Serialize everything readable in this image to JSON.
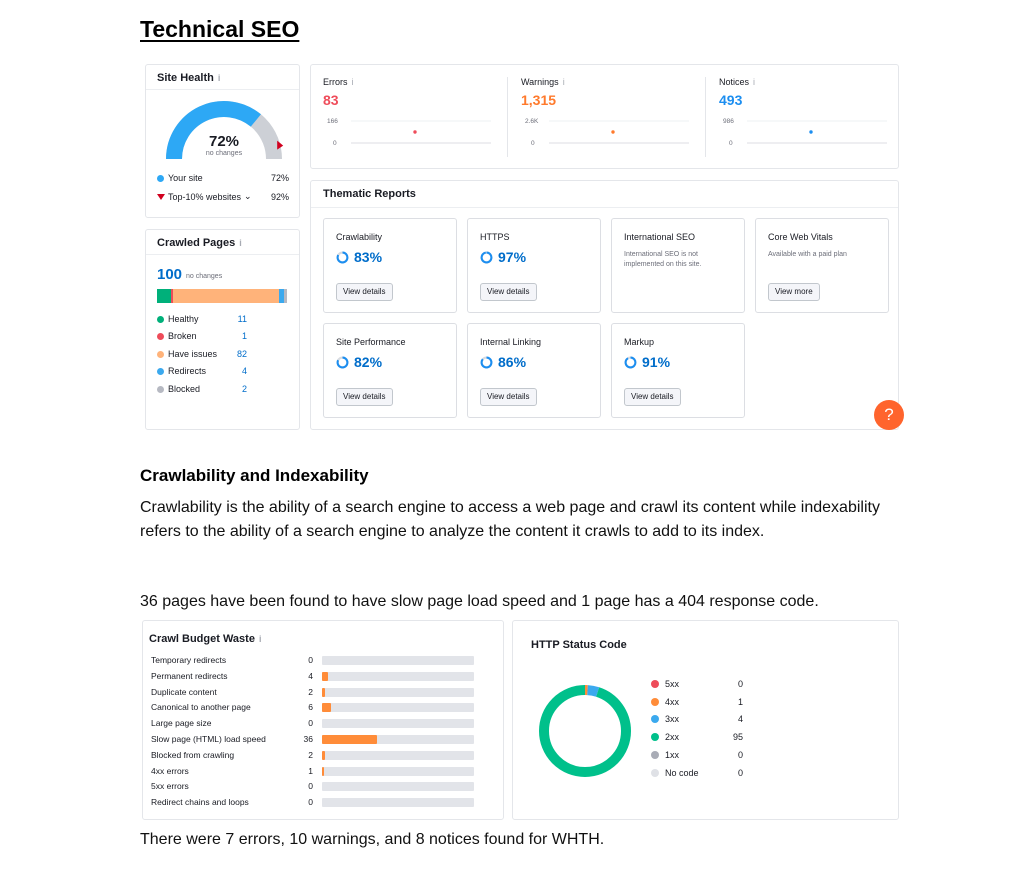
{
  "doc": {
    "title": "Technical SEO",
    "section_heading": "Crawlability and Indexability",
    "paragraph1": "Crawlability is the ability of a search engine to access a web page and crawl its content while indexability refers to the ability of a search engine to analyze the content it crawls to add to its index.",
    "paragraph2": "36 pages have been found to have slow page load speed and 1 page has a 404 response code.",
    "paragraph3": "There were 7 errors, 10 warnings, and 8 notices found for WHTH."
  },
  "site_health": {
    "title": "Site Health",
    "info_icon": "i",
    "value_pct": 72,
    "value_label": "72%",
    "sub_label": "no changes",
    "legend": [
      {
        "label": "Your site",
        "value": "72%",
        "color": "#2da8f5",
        "marker": "dot"
      },
      {
        "label": "Top-10% websites",
        "value": "92%",
        "color": "#d1001f",
        "marker": "triangle",
        "chevron": "⌄"
      }
    ]
  },
  "crawled_pages": {
    "title": "Crawled Pages",
    "info_icon": "i",
    "count": "100",
    "count_sub": "no changes",
    "rows": [
      {
        "label": "Healthy",
        "value": "11",
        "color": "#00b07a"
      },
      {
        "label": "Broken",
        "value": "1",
        "color": "#ee4c5a"
      },
      {
        "label": "Have issues",
        "value": "82",
        "color": "#ffb37a"
      },
      {
        "label": "Redirects",
        "value": "4",
        "color": "#3ba9ee"
      },
      {
        "label": "Blocked",
        "value": "2",
        "color": "#b6b9c2"
      }
    ]
  },
  "issues": [
    {
      "label": "Errors",
      "info_icon": "i",
      "value": "83",
      "color": "#ef4d5b",
      "max_tick": "166",
      "min_tick": "0"
    },
    {
      "label": "Warnings",
      "info_icon": "i",
      "value": "1,315",
      "color": "#ff7a2c",
      "max_tick": "2.6K",
      "min_tick": "0"
    },
    {
      "label": "Notices",
      "info_icon": "i",
      "value": "493",
      "color": "#1c8ef0",
      "max_tick": "986",
      "min_tick": "0"
    }
  ],
  "thematic": {
    "title": "Thematic Reports",
    "tiles": [
      {
        "label": "Crawlability",
        "pct": "83%",
        "pct_value": 83,
        "button": "View details"
      },
      {
        "label": "HTTPS",
        "pct": "97%",
        "pct_value": 97,
        "button": "View details"
      },
      {
        "label": "International SEO",
        "note": "International SEO is not implemented on this site."
      },
      {
        "label": "Core Web Vitals",
        "note": "Available with a paid plan",
        "button": "View more"
      },
      {
        "label": "Site Performance",
        "pct": "82%",
        "pct_value": 82,
        "button": "View details"
      },
      {
        "label": "Internal Linking",
        "pct": "86%",
        "pct_value": 86,
        "button": "View details"
      },
      {
        "label": "Markup",
        "pct": "91%",
        "pct_value": 91,
        "button": "View details"
      }
    ],
    "help_label": "?"
  },
  "crawl_budget": {
    "title": "Crawl Budget Waste",
    "info_icon": "i",
    "max": 100,
    "rows": [
      {
        "label": "Temporary redirects",
        "value": 0
      },
      {
        "label": "Permanent redirects",
        "value": 4
      },
      {
        "label": "Duplicate content",
        "value": 2
      },
      {
        "label": "Canonical to another page",
        "value": 6
      },
      {
        "label": "Large page size",
        "value": 0
      },
      {
        "label": "Slow page (HTML) load speed",
        "value": 36
      },
      {
        "label": "Blocked from crawling",
        "value": 2
      },
      {
        "label": "4xx errors",
        "value": 1
      },
      {
        "label": "5xx errors",
        "value": 0
      },
      {
        "label": "Redirect chains and loops",
        "value": 0
      }
    ]
  },
  "http_status": {
    "title": "HTTP Status Code",
    "rows": [
      {
        "label": "5xx",
        "value": 0,
        "color": "#ee4c5a"
      },
      {
        "label": "4xx",
        "value": 1,
        "color": "#ff8c39"
      },
      {
        "label": "3xx",
        "value": 4,
        "color": "#3ba9ee"
      },
      {
        "label": "2xx",
        "value": 95,
        "color": "#00c08b"
      },
      {
        "label": "1xx",
        "value": 0,
        "color": "#a9acb6"
      },
      {
        "label": "No code",
        "value": 0,
        "color": "#dfe1e6"
      }
    ]
  }
}
